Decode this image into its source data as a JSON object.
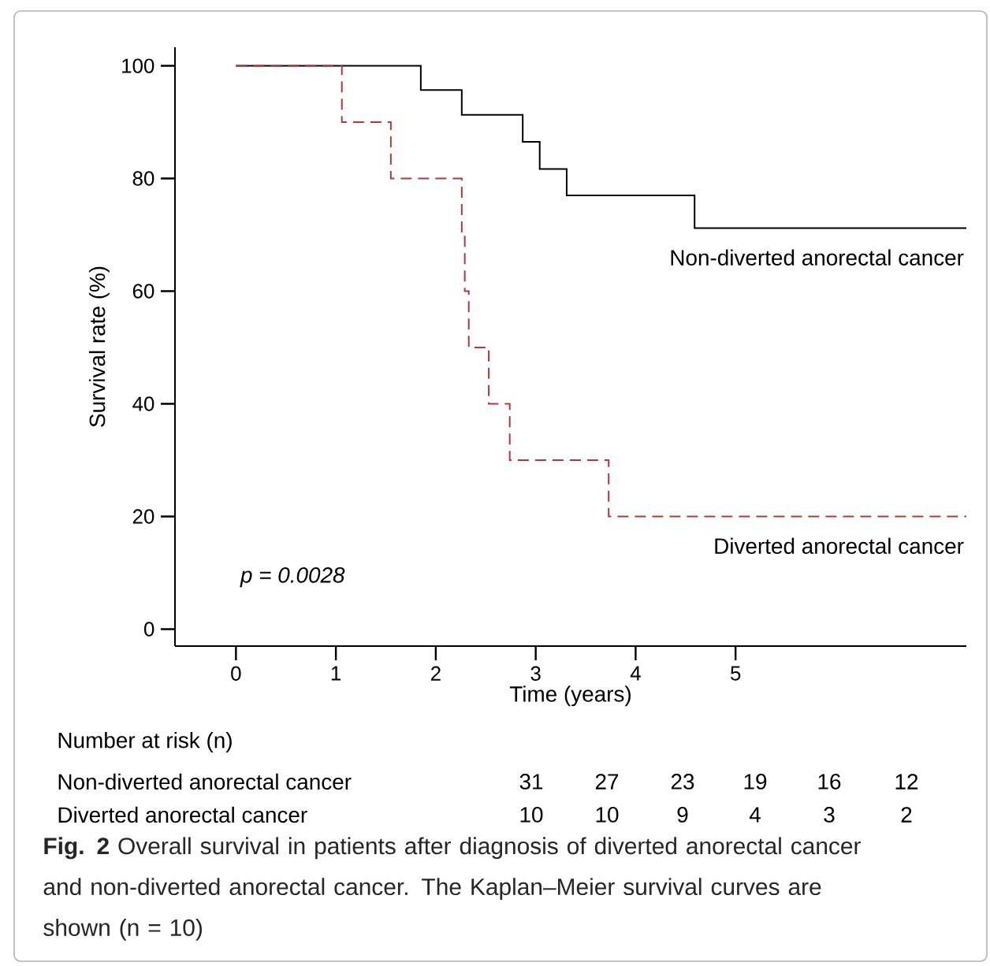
{
  "chart_data": {
    "type": "step",
    "xlabel": "Time (years)",
    "ylabel": "Survival rate (%)",
    "xlim": [
      -0.61,
      7.31
    ],
    "ylim": [
      -3,
      103.3
    ],
    "xticks": [
      0,
      1,
      2,
      3,
      4,
      5
    ],
    "yticks": [
      0,
      20,
      40,
      60,
      80,
      100
    ],
    "series": [
      {
        "name": "Non-diverted anorectal cancer",
        "color": "#000000",
        "line_style": "solid",
        "x": [
          0,
          1.85,
          2.26,
          2.87,
          3.04,
          3.31,
          4.59,
          7.31
        ],
        "values": [
          100,
          95.7,
          91.3,
          86.5,
          81.7,
          77,
          71.2,
          71.2
        ]
      },
      {
        "name": "Diverted anorectal cancer",
        "color": "#b03a3a",
        "line_style": "dashed",
        "x": [
          0,
          1.06,
          1.55,
          2.26,
          2.29,
          2.33,
          2.53,
          2.74,
          3.73,
          7.31
        ],
        "values": [
          100,
          90,
          80,
          70,
          60,
          50,
          40,
          30,
          20,
          20
        ]
      }
    ],
    "annotations": [
      "p = 0.0028",
      "Number at risk (n)",
      "Non-diverted anorectal cancer",
      "31",
      "27",
      "23",
      "19",
      "16",
      "12",
      "Diverted anorectal cancer",
      "10",
      "10",
      "9",
      "4",
      "3",
      "2",
      "**Fig. 2**  Overall survival in patients after diagnosis of diverted anorectal cancer and non-diverted anorectal cancer. The Kaplan–Meier survival curves are shown (n = 10)"
    ]
  }
}
